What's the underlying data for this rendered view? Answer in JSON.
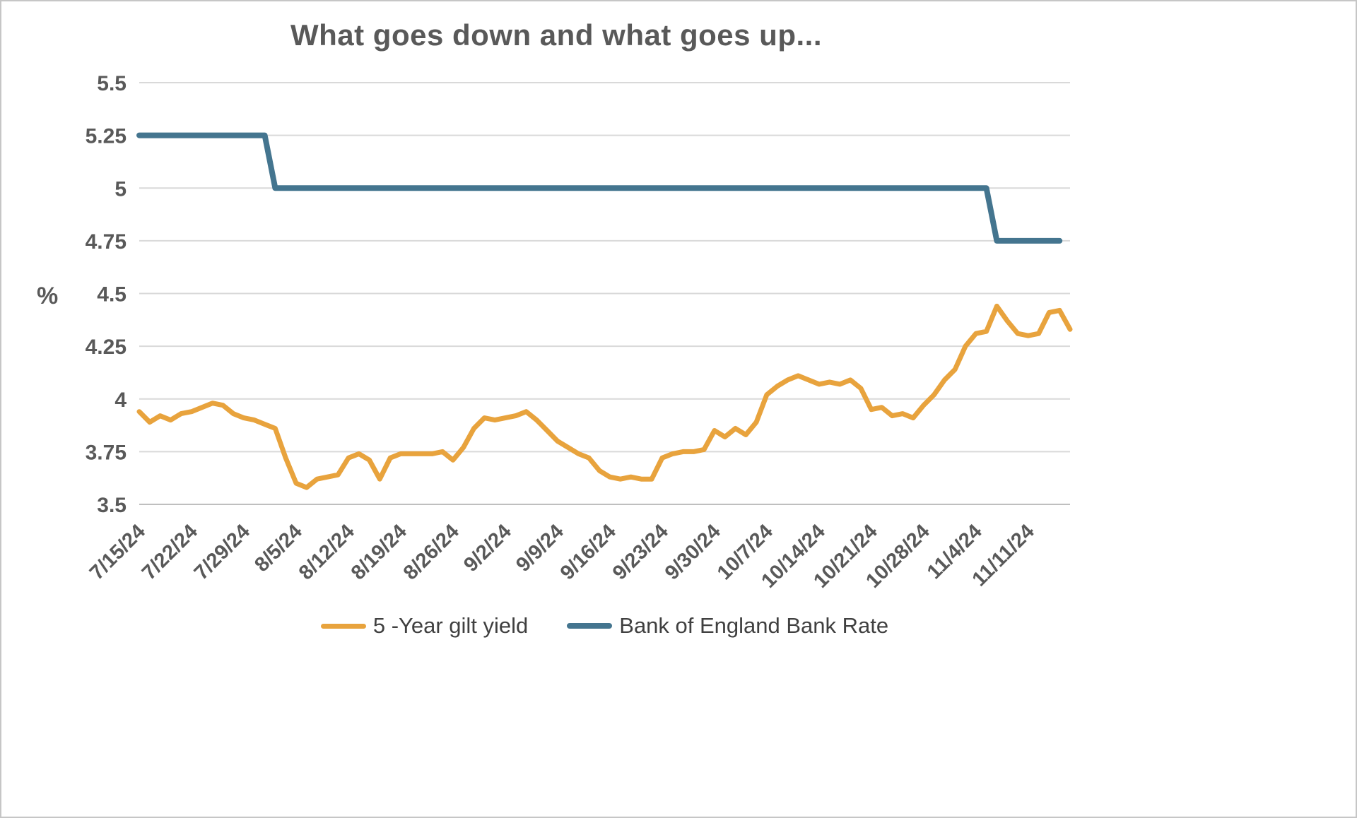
{
  "chart_data": {
    "type": "line",
    "title": "What goes down and what goes up...",
    "xlabel": "",
    "ylabel": "%",
    "ylim": [
      3.5,
      5.5
    ],
    "ytick_step": 0.25,
    "ytick_labels": [
      "3.5",
      "3.75",
      "4",
      "4.25",
      "4.5",
      "4.75",
      "5",
      "5.25",
      "5.5"
    ],
    "grid": true,
    "legend_position": "bottom",
    "x_tick_every": 5,
    "x_tick_labels": [
      "7/15/24",
      "7/22/24",
      "7/29/24",
      "8/5/24",
      "8/12/24",
      "8/19/24",
      "8/26/24",
      "9/2/24",
      "9/9/24",
      "9/16/24",
      "9/23/24",
      "9/30/24",
      "10/7/24",
      "10/14/24",
      "10/21/24",
      "10/28/24",
      "11/4/24",
      "11/11/24"
    ],
    "x": [
      "7/15/24",
      "7/16/24",
      "7/17/24",
      "7/18/24",
      "7/19/24",
      "7/22/24",
      "7/23/24",
      "7/24/24",
      "7/25/24",
      "7/26/24",
      "7/29/24",
      "7/30/24",
      "7/31/24",
      "8/1/24",
      "8/2/24",
      "8/5/24",
      "8/6/24",
      "8/7/24",
      "8/8/24",
      "8/9/24",
      "8/12/24",
      "8/13/24",
      "8/14/24",
      "8/15/24",
      "8/16/24",
      "8/19/24",
      "8/20/24",
      "8/21/24",
      "8/22/24",
      "8/23/24",
      "8/26/24",
      "8/27/24",
      "8/28/24",
      "8/29/24",
      "8/30/24",
      "9/2/24",
      "9/3/24",
      "9/4/24",
      "9/5/24",
      "9/6/24",
      "9/9/24",
      "9/10/24",
      "9/11/24",
      "9/12/24",
      "9/13/24",
      "9/16/24",
      "9/17/24",
      "9/18/24",
      "9/19/24",
      "9/20/24",
      "9/23/24",
      "9/24/24",
      "9/25/24",
      "9/26/24",
      "9/27/24",
      "9/30/24",
      "10/1/24",
      "10/2/24",
      "10/3/24",
      "10/4/24",
      "10/7/24",
      "10/8/24",
      "10/9/24",
      "10/10/24",
      "10/11/24",
      "10/14/24",
      "10/15/24",
      "10/16/24",
      "10/17/24",
      "10/18/24",
      "10/21/24",
      "10/22/24",
      "10/23/24",
      "10/24/24",
      "10/25/24",
      "10/28/24",
      "10/29/24",
      "10/30/24",
      "10/31/24",
      "11/1/24",
      "11/4/24",
      "11/5/24",
      "11/6/24",
      "11/7/24",
      "11/8/24",
      "11/11/24",
      "11/12/24",
      "11/13/24",
      "11/14/24",
      "11/15/24"
    ],
    "series": [
      {
        "name": "5 -Year gilt yield",
        "color": "#E8A33D",
        "width": 7,
        "values": [
          3.94,
          3.89,
          3.92,
          3.9,
          3.93,
          3.94,
          3.96,
          3.98,
          3.97,
          3.93,
          3.91,
          3.9,
          3.88,
          3.86,
          3.72,
          3.6,
          3.58,
          3.62,
          3.63,
          3.64,
          3.72,
          3.74,
          3.71,
          3.62,
          3.72,
          3.74,
          3.74,
          3.74,
          3.74,
          3.75,
          3.71,
          3.77,
          3.86,
          3.91,
          3.9,
          3.91,
          3.92,
          3.94,
          3.9,
          3.85,
          3.8,
          3.77,
          3.74,
          3.72,
          3.66,
          3.63,
          3.62,
          3.63,
          3.62,
          3.62,
          3.72,
          3.74,
          3.75,
          3.75,
          3.76,
          3.85,
          3.82,
          3.86,
          3.83,
          3.89,
          4.02,
          4.06,
          4.09,
          4.11,
          4.09,
          4.07,
          4.08,
          4.07,
          4.09,
          4.05,
          3.95,
          3.96,
          3.92,
          3.93,
          3.91,
          3.97,
          4.02,
          4.09,
          4.14,
          4.25,
          4.31,
          4.32,
          4.44,
          4.37,
          4.31,
          4.3,
          4.31,
          4.41,
          4.42,
          4.33
        ]
      },
      {
        "name": "Bank of England Bank Rate",
        "color": "#44758F",
        "width": 8,
        "values": [
          5.25,
          5.25,
          5.25,
          5.25,
          5.25,
          5.25,
          5.25,
          5.25,
          5.25,
          5.25,
          5.25,
          5.25,
          5.25,
          5.0,
          5.0,
          5.0,
          5.0,
          5.0,
          5.0,
          5.0,
          5.0,
          5.0,
          5.0,
          5.0,
          5.0,
          5.0,
          5.0,
          5.0,
          5.0,
          5.0,
          5.0,
          5.0,
          5.0,
          5.0,
          5.0,
          5.0,
          5.0,
          5.0,
          5.0,
          5.0,
          5.0,
          5.0,
          5.0,
          5.0,
          5.0,
          5.0,
          5.0,
          5.0,
          5.0,
          5.0,
          5.0,
          5.0,
          5.0,
          5.0,
          5.0,
          5.0,
          5.0,
          5.0,
          5.0,
          5.0,
          5.0,
          5.0,
          5.0,
          5.0,
          5.0,
          5.0,
          5.0,
          5.0,
          5.0,
          5.0,
          5.0,
          5.0,
          5.0,
          5.0,
          5.0,
          5.0,
          5.0,
          5.0,
          5.0,
          5.0,
          5.0,
          5.0,
          4.75,
          4.75,
          4.75,
          4.75,
          4.75,
          4.75,
          4.75
        ]
      }
    ],
    "colors": {
      "grid": "#D9D9D9",
      "axis": "#BFBFBF",
      "text": "#595959",
      "background": "#FFFFFF",
      "border": "#C6C6C6"
    }
  }
}
